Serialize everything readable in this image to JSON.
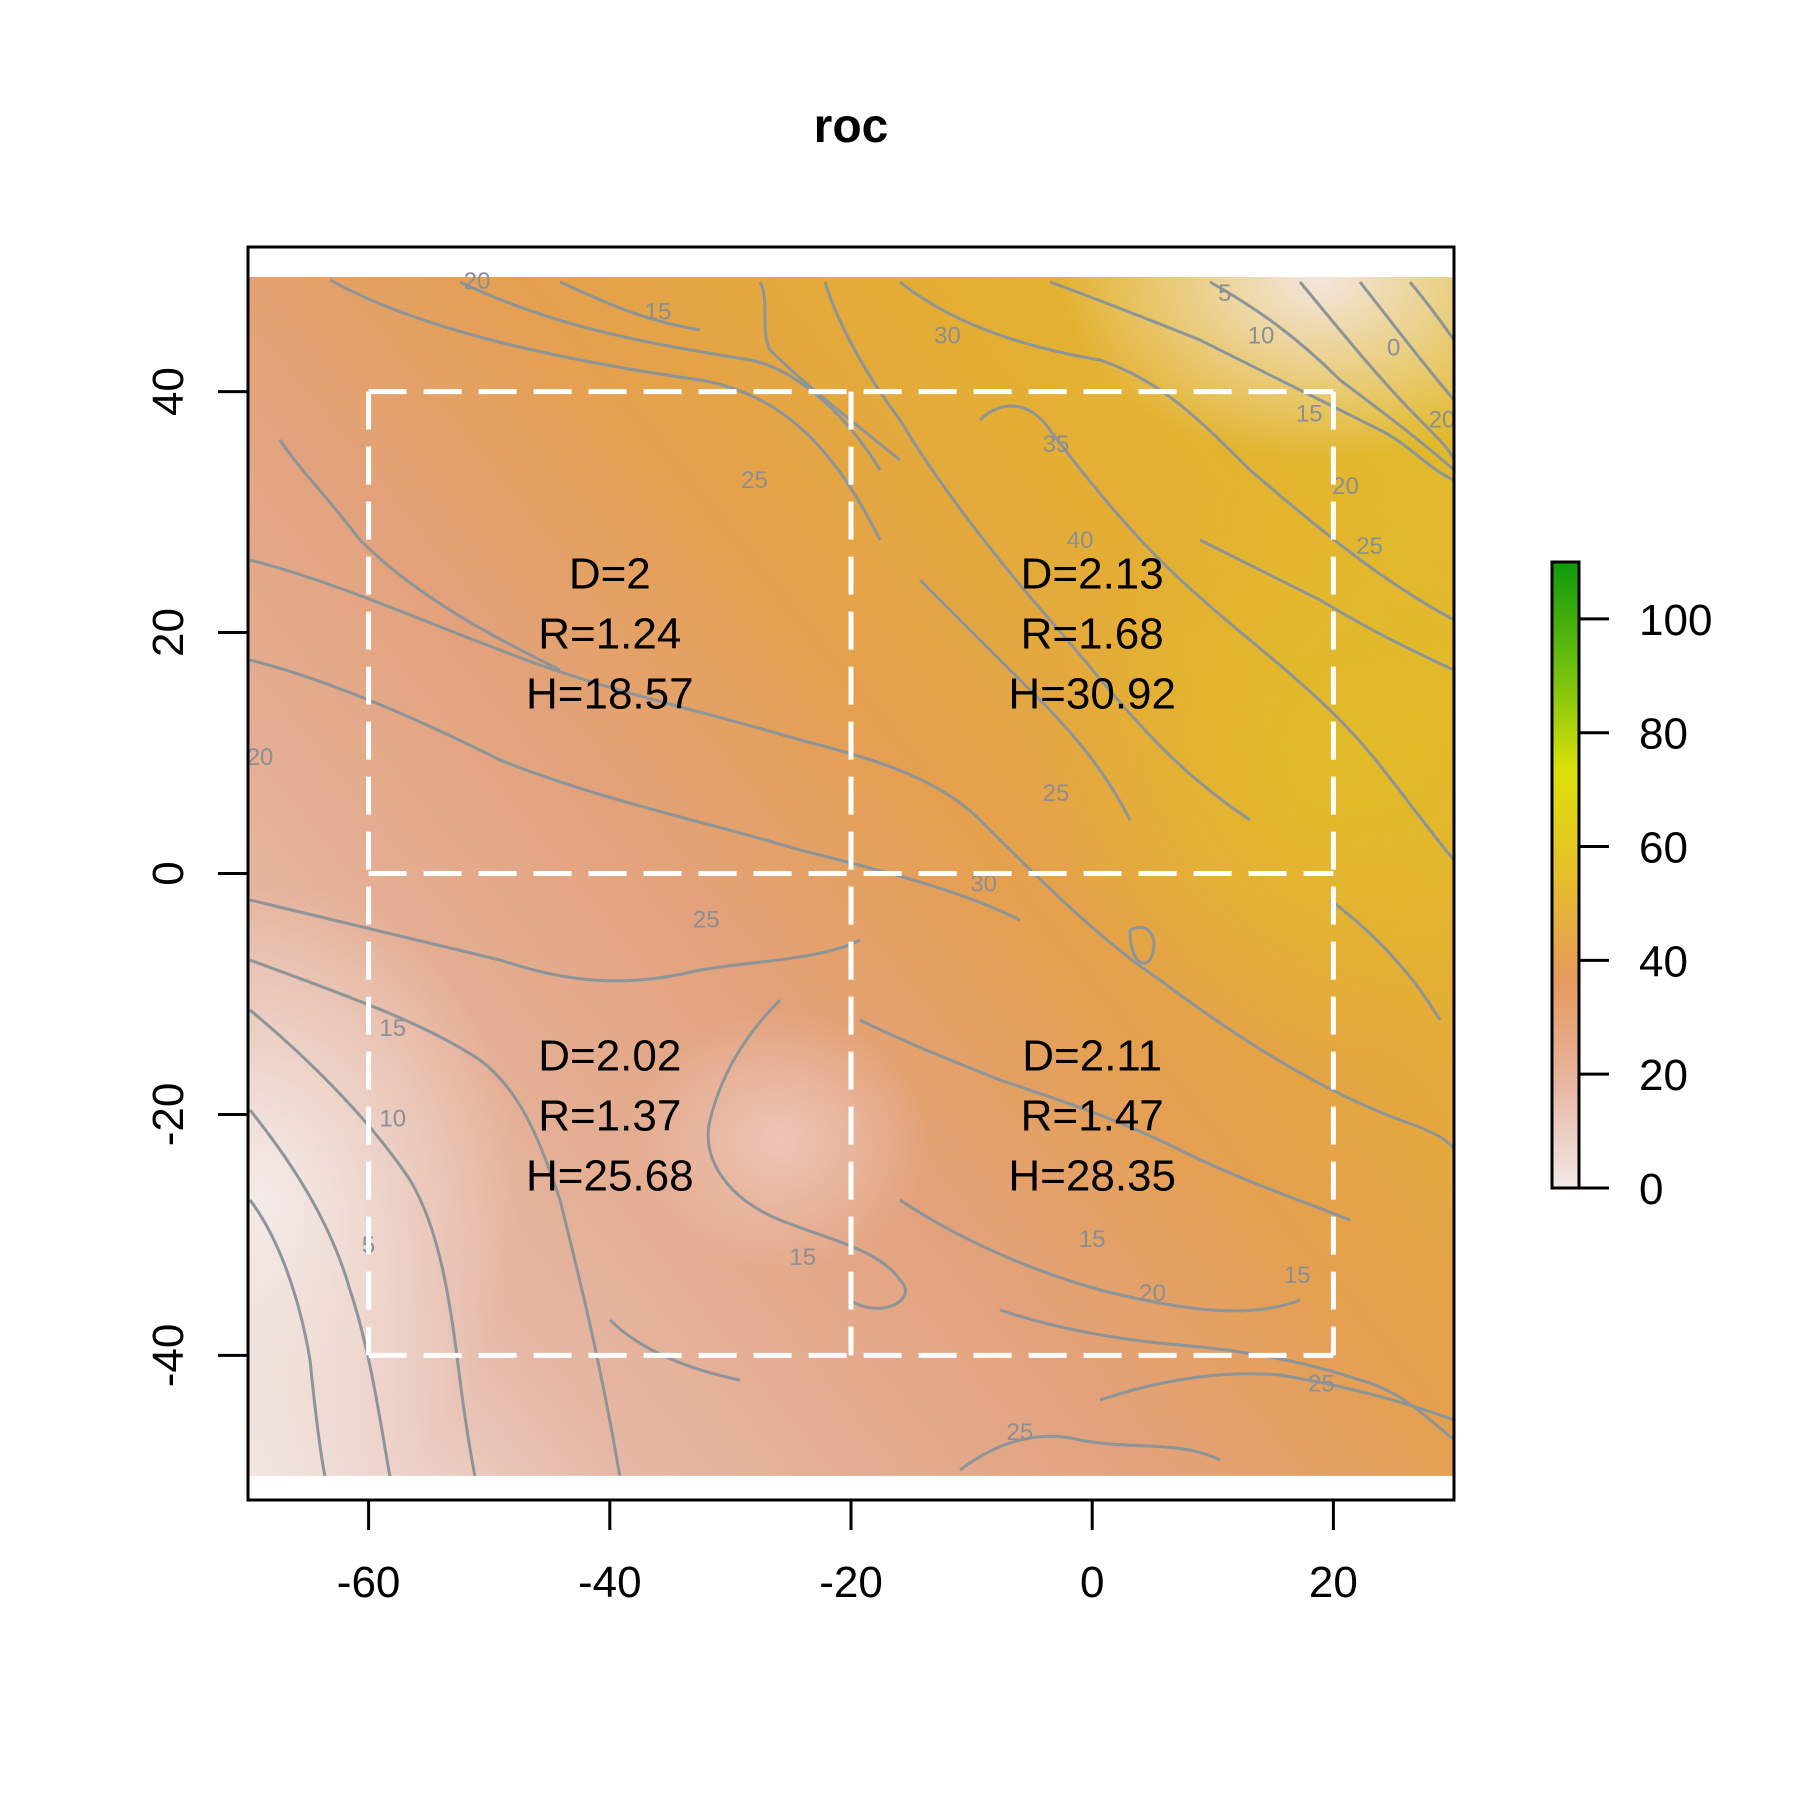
{
  "chart_data": {
    "type": "heatmap",
    "title": "roc",
    "xlabel": "",
    "ylabel": "",
    "xlim": [
      -70,
      30
    ],
    "ylim": [
      -52,
      52
    ],
    "raster_extent": {
      "x": [
        -70,
        30
      ],
      "y": [
        -50,
        50
      ]
    },
    "xticks": [
      -60,
      -40,
      -20,
      0,
      20
    ],
    "yticks": [
      -40,
      -20,
      0,
      20,
      40
    ],
    "colorbar": {
      "range": [
        0,
        110
      ],
      "ticks": [
        0,
        20,
        40,
        60,
        80,
        100
      ],
      "colors": [
        "#f2e9e7",
        "#e7b5a0",
        "#e69a5c",
        "#e6bf2a",
        "#dde00a",
        "#6bbf0e",
        "#109a0c"
      ],
      "position": "right"
    },
    "grid_lines": {
      "style": "dashed",
      "color": "#ffffff",
      "x": [
        -60,
        -20,
        20
      ],
      "y": [
        -40,
        0,
        40
      ]
    },
    "quadrants": [
      {
        "x": -40,
        "y": 20,
        "D": "D=2",
        "R": "R=1.24",
        "H": "H=18.57"
      },
      {
        "x": 0,
        "y": 20,
        "D": "D=2.13",
        "R": "R=1.68",
        "H": "H=30.92"
      },
      {
        "x": -40,
        "y": -20,
        "D": "D=2.02",
        "R": "R=1.37",
        "H": "H=25.68"
      },
      {
        "x": 0,
        "y": -20,
        "D": "D=2.11",
        "R": "R=1.47",
        "H": "H=28.35"
      }
    ],
    "contour_labels": [
      {
        "x": -51,
        "y": 48.5,
        "text": "20"
      },
      {
        "x": -36,
        "y": 46,
        "text": "15"
      },
      {
        "x": -12,
        "y": 44,
        "text": "30"
      },
      {
        "x": 11,
        "y": 47.5,
        "text": "5"
      },
      {
        "x": 14,
        "y": 44,
        "text": "10"
      },
      {
        "x": 25,
        "y": 43,
        "text": "0"
      },
      {
        "x": 18,
        "y": 37.5,
        "text": "15"
      },
      {
        "x": 29,
        "y": 37,
        "text": "20"
      },
      {
        "x": -28,
        "y": 32,
        "text": "25"
      },
      {
        "x": -3,
        "y": 35,
        "text": "35"
      },
      {
        "x": -1,
        "y": 27,
        "text": "40"
      },
      {
        "x": 21,
        "y": 31.5,
        "text": "20"
      },
      {
        "x": 23,
        "y": 26.5,
        "text": "25"
      },
      {
        "x": -69,
        "y": 9,
        "text": "20"
      },
      {
        "x": -3,
        "y": 6,
        "text": "25"
      },
      {
        "x": -9,
        "y": -1.5,
        "text": "30"
      },
      {
        "x": -32,
        "y": -4.5,
        "text": "25"
      },
      {
        "x": -58,
        "y": -13.5,
        "text": "15"
      },
      {
        "x": -58,
        "y": -21,
        "text": "10"
      },
      {
        "x": -60,
        "y": -31.5,
        "text": "5"
      },
      {
        "x": -24,
        "y": -32.5,
        "text": "15"
      },
      {
        "x": 0,
        "y": -31,
        "text": "15"
      },
      {
        "x": 5,
        "y": -35.5,
        "text": "20"
      },
      {
        "x": 17,
        "y": -34,
        "text": "15"
      },
      {
        "x": 19,
        "y": -43,
        "text": "25"
      },
      {
        "x": -6,
        "y": -47,
        "text": "25"
      }
    ]
  }
}
